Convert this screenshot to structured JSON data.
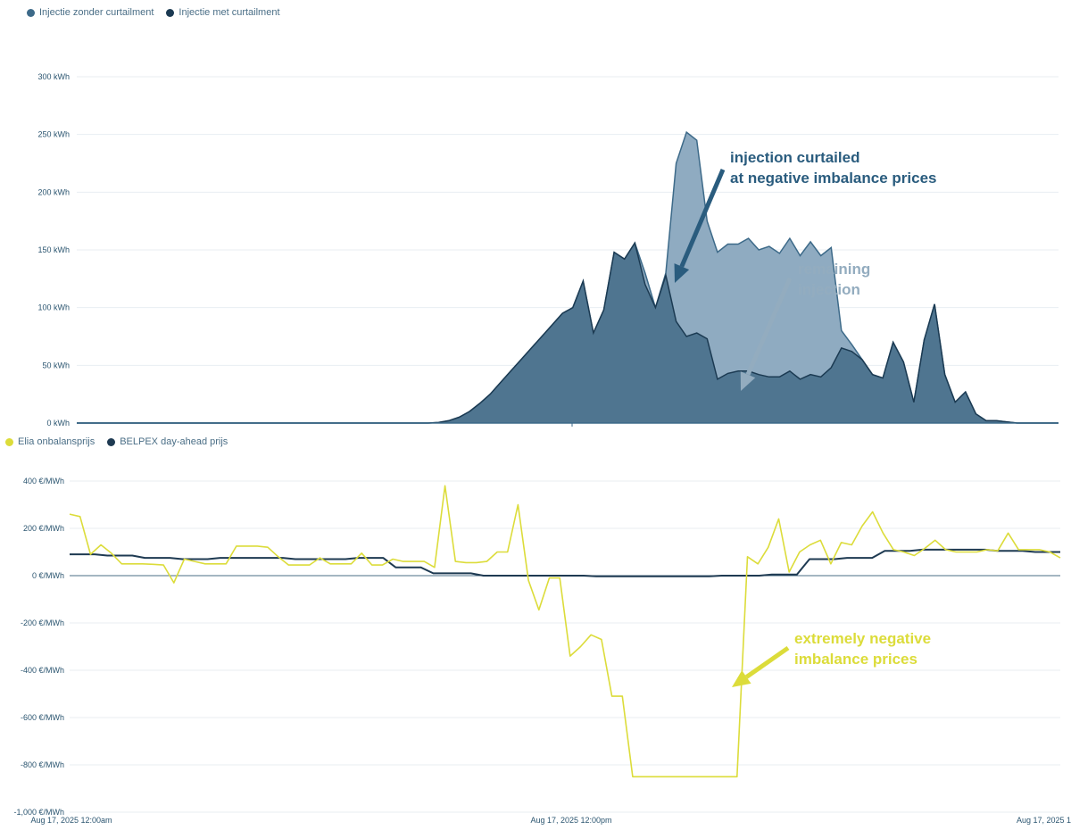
{
  "colors": {
    "no_curtail_fill": "#8fabc1",
    "no_curtail_line": "#3d6a89",
    "curtail_fill": "#4f7590",
    "curtail_line": "#1b3a52",
    "elia": "#dcdc3a",
    "belpex": "#1e3a52",
    "grid": "#e8eef2",
    "ann_dark": "#2a5c7e",
    "ann_light": "#93acbf",
    "ann_yellow": "#dcdc3a"
  },
  "chart_data": [
    {
      "type": "area",
      "legend": [
        {
          "name": "Injectie zonder curtailment",
          "color": "#3d6a89"
        },
        {
          "name": "Injectie met curtailment",
          "color": "#1b3a52"
        }
      ],
      "ylim": [
        0,
        300
      ],
      "yticks": [
        "0 kWh",
        "50 kWh",
        "100 kWh",
        "150 kWh",
        "200 kWh",
        "250 kWh",
        "300 kWh"
      ],
      "ytick_values": [
        0,
        50,
        100,
        150,
        200,
        250,
        300
      ],
      "x_count": 96,
      "series": [
        {
          "name": "Injectie zonder curtailment",
          "values": [
            0,
            0,
            0,
            0,
            0,
            0,
            0,
            0,
            0,
            0,
            0,
            0,
            0,
            0,
            0,
            0,
            0,
            0,
            0,
            0,
            0,
            0,
            0,
            0,
            0,
            0,
            0,
            0,
            0,
            0,
            0,
            0,
            0,
            0,
            0,
            0.5,
            2,
            5,
            10,
            17,
            25,
            35,
            45,
            55,
            65,
            75,
            85,
            95,
            100,
            123,
            78,
            98,
            148,
            142,
            156,
            130,
            100,
            130,
            225,
            252,
            245,
            175,
            148,
            155,
            155,
            160,
            150,
            153,
            147,
            160,
            145,
            157,
            145,
            152,
            80,
            68,
            55,
            42,
            39,
            70,
            53,
            18,
            72,
            103,
            42,
            18,
            27,
            8,
            2,
            2,
            1,
            0,
            0,
            0,
            0,
            0
          ]
        },
        {
          "name": "Injectie met curtailment",
          "values": [
            0,
            0,
            0,
            0,
            0,
            0,
            0,
            0,
            0,
            0,
            0,
            0,
            0,
            0,
            0,
            0,
            0,
            0,
            0,
            0,
            0,
            0,
            0,
            0,
            0,
            0,
            0,
            0,
            0,
            0,
            0,
            0,
            0,
            0,
            0,
            0.5,
            2,
            5,
            10,
            17,
            25,
            35,
            45,
            55,
            65,
            75,
            85,
            95,
            100,
            123,
            78,
            98,
            148,
            142,
            156,
            120,
            100,
            128,
            88,
            75,
            78,
            73,
            38,
            43,
            45,
            45,
            42,
            40,
            40,
            45,
            38,
            42,
            40,
            48,
            65,
            62,
            55,
            42,
            39,
            70,
            53,
            18,
            72,
            103,
            42,
            18,
            27,
            8,
            2,
            2,
            1,
            0,
            0,
            0,
            0,
            0
          ]
        }
      ]
    },
    {
      "type": "line",
      "legend": [
        {
          "name": "Elia onbalansprijs",
          "color": "#dcdc3a"
        },
        {
          "name": "BELPEX day-ahead prijs",
          "color": "#1e3a52"
        }
      ],
      "ylim": [
        -1000,
        400
      ],
      "yticks": [
        "-1,000 €/MWh",
        "-800 €/MWh",
        "-600 €/MWh",
        "-400 €/MWh",
        "-200 €/MWh",
        "0 €/MWh",
        "200 €/MWh",
        "400 €/MWh"
      ],
      "ytick_values": [
        -1000,
        -800,
        -600,
        -400,
        -200,
        0,
        200,
        400
      ],
      "x_labels": [
        "Aug 17, 2025 12:00am",
        "Aug 17, 2025 12:00pm",
        "Aug 17, 2025 1"
      ],
      "series": [
        {
          "name": "Elia onbalansprijs",
          "values": [
            260,
            250,
            90,
            130,
            95,
            50,
            50,
            50,
            48,
            45,
            -30,
            70,
            60,
            50,
            50,
            50,
            125,
            125,
            125,
            120,
            80,
            45,
            45,
            45,
            75,
            50,
            50,
            50,
            95,
            45,
            45,
            70,
            60,
            60,
            60,
            35,
            380,
            60,
            55,
            55,
            60,
            100,
            100,
            300,
            -20,
            -145,
            -10,
            -10,
            -340,
            -300,
            -250,
            -270,
            -510,
            -510,
            -850,
            -850,
            -850,
            -850,
            -850,
            -850,
            -850,
            -850,
            -850,
            -850,
            -850,
            80,
            50,
            120,
            240,
            15,
            100,
            130,
            150,
            50,
            140,
            130,
            210,
            270,
            180,
            110,
            100,
            85,
            115,
            150,
            110,
            100,
            100,
            100,
            110,
            105,
            180,
            110,
            110,
            110,
            100,
            75
          ]
        },
        {
          "name": "BELPEX day-ahead prijs",
          "values": [
            90,
            90,
            90,
            85,
            85,
            85,
            75,
            75,
            75,
            70,
            70,
            70,
            75,
            75,
            75,
            75,
            75,
            75,
            70,
            70,
            70,
            70,
            70,
            75,
            75,
            75,
            35,
            35,
            35,
            10,
            10,
            10,
            10,
            0,
            0,
            0,
            0,
            0,
            0,
            0,
            0,
            0,
            -3,
            -3,
            -3,
            -3,
            -3,
            -3,
            -3,
            -3,
            -3,
            -3,
            0,
            0,
            0,
            0,
            5,
            5,
            5,
            70,
            70,
            70,
            75,
            75,
            75,
            105,
            105,
            105,
            110,
            110,
            110,
            110,
            110,
            110,
            105,
            105,
            105,
            100,
            100,
            100
          ]
        }
      ]
    }
  ],
  "annotations": {
    "curtailed": [
      "injection curtailed",
      "at negative imbalance prices"
    ],
    "remaining": [
      "remaining",
      "injection"
    ],
    "negative": [
      "extremely negative",
      "imbalance prices"
    ]
  }
}
